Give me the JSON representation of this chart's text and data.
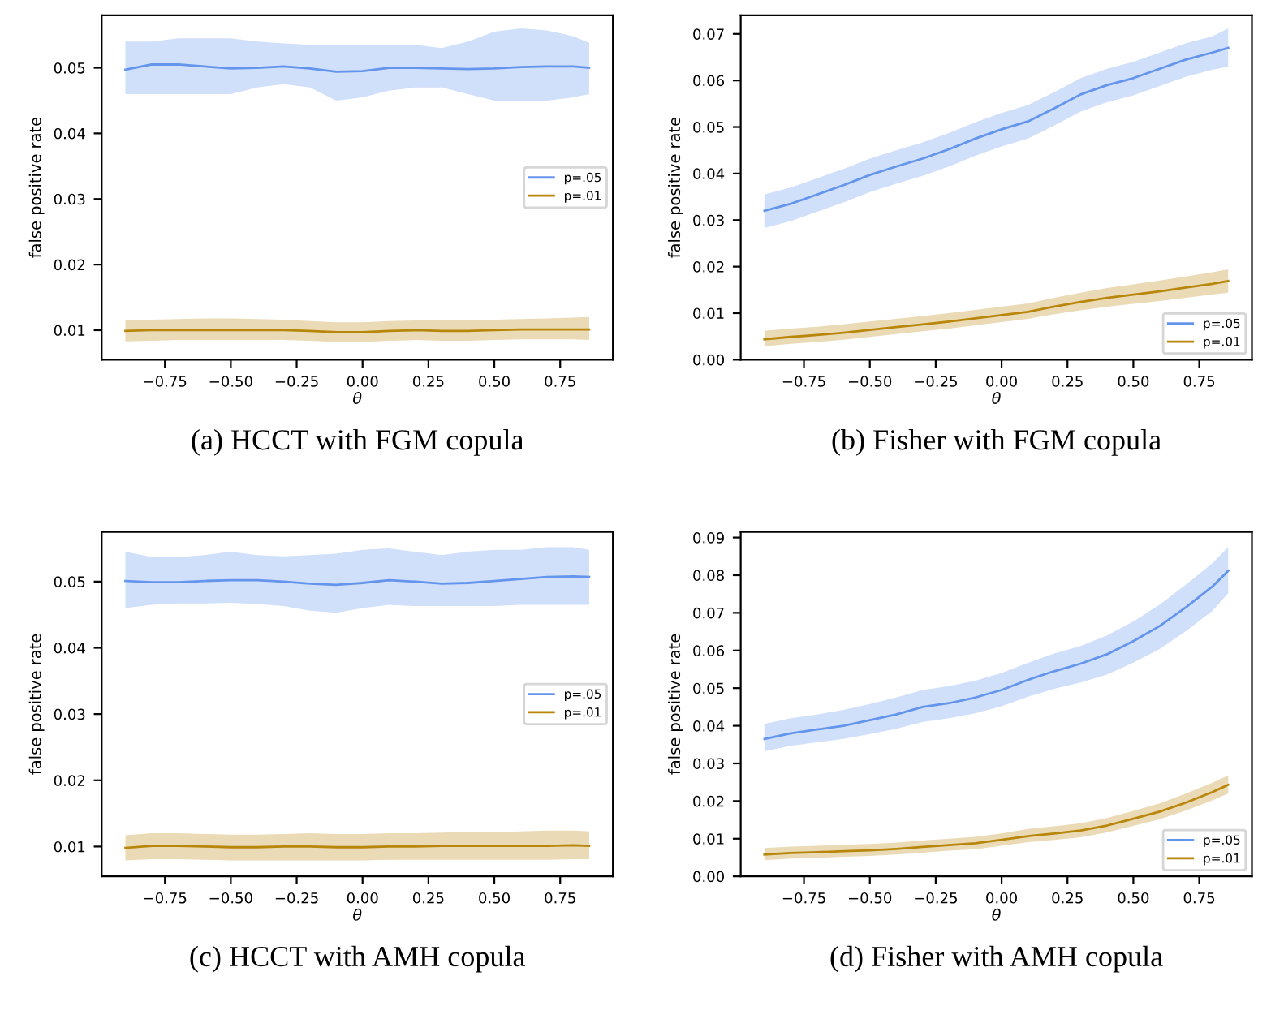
{
  "chart_data": [
    {
      "type": "line",
      "title": "(a) HCCT with FGM copula",
      "xlabel": "θ",
      "ylabel": "false positive rate",
      "legend": "center right",
      "x": [
        -0.9,
        -0.8,
        -0.7,
        -0.6,
        -0.5,
        -0.4,
        -0.3,
        -0.2,
        -0.1,
        0.0,
        0.1,
        0.2,
        0.3,
        0.4,
        0.5,
        0.6,
        0.7,
        0.8,
        0.86
      ],
      "xlim": [
        -0.99,
        0.95
      ],
      "ylim": [
        0.0055,
        0.058
      ],
      "xticks": [
        {
          "value": -0.75,
          "label": "−0.75"
        },
        {
          "value": -0.5,
          "label": "−0.50"
        },
        {
          "value": -0.25,
          "label": "−0.25"
        },
        {
          "value": 0,
          "label": "0.00"
        },
        {
          "value": 0.25,
          "label": "0.25"
        },
        {
          "value": 0.5,
          "label": "0.50"
        },
        {
          "value": 0.75,
          "label": "0.75"
        }
      ],
      "yticks": [
        0.01,
        0.02,
        0.03,
        0.04,
        0.05
      ],
      "series": [
        {
          "name": "p=.05",
          "color": "#6495ed",
          "values": [
            0.0497,
            0.0505,
            0.0505,
            0.0502,
            0.0499,
            0.05,
            0.0502,
            0.0499,
            0.0494,
            0.0495,
            0.05,
            0.05,
            0.0499,
            0.0498,
            0.0499,
            0.0501,
            0.0502,
            0.0502,
            0.05
          ],
          "lower": [
            0.046,
            0.046,
            0.046,
            0.046,
            0.046,
            0.047,
            0.0475,
            0.047,
            0.045,
            0.0455,
            0.0465,
            0.047,
            0.047,
            0.046,
            0.045,
            0.045,
            0.045,
            0.0455,
            0.046
          ],
          "upper": [
            0.054,
            0.054,
            0.0545,
            0.0545,
            0.0545,
            0.054,
            0.0537,
            0.0535,
            0.0535,
            0.0535,
            0.0535,
            0.0535,
            0.053,
            0.054,
            0.0555,
            0.056,
            0.0557,
            0.0548,
            0.0538
          ]
        },
        {
          "name": "p=.01",
          "color": "#b8860b",
          "values": [
            0.0099,
            0.01,
            0.01,
            0.01,
            0.01,
            0.01,
            0.01,
            0.0099,
            0.0097,
            0.0097,
            0.0099,
            0.01,
            0.0099,
            0.0099,
            0.01,
            0.0101,
            0.0101,
            0.0101,
            0.0101
          ],
          "lower": [
            0.0083,
            0.0084,
            0.0085,
            0.0085,
            0.0085,
            0.0085,
            0.0085,
            0.0084,
            0.0082,
            0.0082,
            0.0084,
            0.0085,
            0.0084,
            0.0084,
            0.0085,
            0.0086,
            0.0086,
            0.0086,
            0.0085
          ],
          "upper": [
            0.0115,
            0.0116,
            0.0117,
            0.0118,
            0.0118,
            0.0117,
            0.0116,
            0.0114,
            0.0112,
            0.0112,
            0.0114,
            0.0115,
            0.0115,
            0.0115,
            0.0116,
            0.0117,
            0.0118,
            0.0119,
            0.012
          ]
        }
      ]
    },
    {
      "type": "line",
      "title": "(b) Fisher with FGM copula",
      "xlabel": "θ",
      "ylabel": "false positive rate",
      "legend": "lower right",
      "x": [
        -0.9,
        -0.8,
        -0.7,
        -0.6,
        -0.5,
        -0.4,
        -0.3,
        -0.2,
        -0.1,
        0.0,
        0.1,
        0.2,
        0.3,
        0.4,
        0.5,
        0.6,
        0.7,
        0.8,
        0.86
      ],
      "xlim": [
        -0.99,
        0.95
      ],
      "ylim": [
        0,
        0.074
      ],
      "xticks": [
        {
          "value": -0.75,
          "label": "−0.75"
        },
        {
          "value": -0.5,
          "label": "−0.50"
        },
        {
          "value": -0.25,
          "label": "−0.25"
        },
        {
          "value": 0,
          "label": "0.00"
        },
        {
          "value": 0.25,
          "label": "0.25"
        },
        {
          "value": 0.5,
          "label": "0.50"
        },
        {
          "value": 0.75,
          "label": "0.75"
        }
      ],
      "yticks": [
        {
          "value": 0,
          "label": "0.00"
        },
        0.01,
        0.02,
        0.03,
        0.04,
        0.05,
        0.06,
        0.07
      ],
      "series": [
        {
          "name": "p=.05",
          "color": "#6495ed",
          "values": [
            0.032,
            0.0335,
            0.0355,
            0.0375,
            0.0397,
            0.0415,
            0.0432,
            0.0452,
            0.0475,
            0.0495,
            0.0512,
            0.054,
            0.057,
            0.059,
            0.0605,
            0.0625,
            0.0645,
            0.066,
            0.067
          ],
          "lower": [
            0.0283,
            0.0298,
            0.0318,
            0.0338,
            0.036,
            0.0378,
            0.0395,
            0.0415,
            0.0438,
            0.0458,
            0.0475,
            0.0503,
            0.0533,
            0.0553,
            0.0568,
            0.0588,
            0.0608,
            0.0623,
            0.063
          ],
          "upper": [
            0.0355,
            0.037,
            0.039,
            0.041,
            0.0432,
            0.045,
            0.0467,
            0.0487,
            0.051,
            0.053,
            0.0547,
            0.0575,
            0.0605,
            0.0625,
            0.064,
            0.066,
            0.068,
            0.0695,
            0.0712
          ]
        },
        {
          "name": "p=.01",
          "color": "#b8860b",
          "values": [
            0.0044,
            0.0049,
            0.0053,
            0.0058,
            0.0064,
            0.007,
            0.0076,
            0.0082,
            0.0089,
            0.0096,
            0.0103,
            0.0114,
            0.0124,
            0.0133,
            0.014,
            0.0147,
            0.0155,
            0.0163,
            0.0169
          ],
          "lower": [
            0.0029,
            0.0034,
            0.0038,
            0.0043,
            0.0049,
            0.0055,
            0.0061,
            0.0067,
            0.0074,
            0.0081,
            0.0088,
            0.0098,
            0.0106,
            0.0114,
            0.012,
            0.0126,
            0.0133,
            0.014,
            0.0144
          ],
          "upper": [
            0.0062,
            0.0067,
            0.0071,
            0.0076,
            0.0082,
            0.0088,
            0.0094,
            0.01,
            0.0107,
            0.0114,
            0.0121,
            0.0133,
            0.0144,
            0.0154,
            0.0162,
            0.017,
            0.0179,
            0.0188,
            0.0194
          ]
        }
      ]
    },
    {
      "type": "line",
      "title": "(c) HCCT with AMH copula",
      "xlabel": "θ",
      "ylabel": "false positive rate",
      "legend": "center right",
      "x": [
        -0.9,
        -0.8,
        -0.7,
        -0.6,
        -0.5,
        -0.4,
        -0.3,
        -0.2,
        -0.1,
        0.0,
        0.1,
        0.2,
        0.3,
        0.4,
        0.5,
        0.6,
        0.7,
        0.8,
        0.86
      ],
      "xlim": [
        -0.99,
        0.95
      ],
      "ylim": [
        0.0055,
        0.0575
      ],
      "xticks": [
        {
          "value": -0.75,
          "label": "−0.75"
        },
        {
          "value": -0.5,
          "label": "−0.50"
        },
        {
          "value": -0.25,
          "label": "−0.25"
        },
        {
          "value": 0,
          "label": "0.00"
        },
        {
          "value": 0.25,
          "label": "0.25"
        },
        {
          "value": 0.5,
          "label": "0.50"
        },
        {
          "value": 0.75,
          "label": "0.75"
        }
      ],
      "yticks": [
        0.01,
        0.02,
        0.03,
        0.04,
        0.05
      ],
      "series": [
        {
          "name": "p=.05",
          "color": "#6495ed",
          "values": [
            0.0501,
            0.0499,
            0.0499,
            0.0501,
            0.0502,
            0.0502,
            0.05,
            0.0497,
            0.0495,
            0.0498,
            0.0502,
            0.05,
            0.0497,
            0.0498,
            0.0501,
            0.0504,
            0.0507,
            0.0508,
            0.0507
          ],
          "lower": [
            0.046,
            0.0465,
            0.0467,
            0.0467,
            0.0468,
            0.0466,
            0.0463,
            0.0456,
            0.0453,
            0.046,
            0.0465,
            0.0463,
            0.0463,
            0.0463,
            0.0463,
            0.0465,
            0.0465,
            0.0465,
            0.0465
          ],
          "upper": [
            0.0545,
            0.0537,
            0.0537,
            0.054,
            0.0545,
            0.054,
            0.0538,
            0.054,
            0.0542,
            0.0548,
            0.055,
            0.0545,
            0.054,
            0.0545,
            0.0548,
            0.0548,
            0.0552,
            0.0552,
            0.0548
          ]
        },
        {
          "name": "p=.01",
          "color": "#b8860b",
          "values": [
            0.0098,
            0.0101,
            0.0101,
            0.01,
            0.0099,
            0.0099,
            0.01,
            0.01,
            0.0099,
            0.0099,
            0.01,
            0.01,
            0.0101,
            0.0101,
            0.0101,
            0.0101,
            0.0101,
            0.0102,
            0.0101
          ],
          "lower": [
            0.0079,
            0.0081,
            0.0081,
            0.008,
            0.0079,
            0.0079,
            0.0079,
            0.0079,
            0.0079,
            0.0079,
            0.008,
            0.008,
            0.008,
            0.008,
            0.008,
            0.008,
            0.008,
            0.0081,
            0.0081
          ],
          "upper": [
            0.0117,
            0.012,
            0.012,
            0.0119,
            0.0118,
            0.0118,
            0.0119,
            0.012,
            0.0119,
            0.0119,
            0.012,
            0.012,
            0.0121,
            0.0122,
            0.0122,
            0.0123,
            0.0124,
            0.0124,
            0.0123
          ]
        }
      ]
    },
    {
      "type": "line",
      "title": "(d) Fisher with AMH copula",
      "xlabel": "θ",
      "ylabel": "false positive rate",
      "legend": "lower right",
      "x": [
        -0.9,
        -0.8,
        -0.7,
        -0.6,
        -0.5,
        -0.4,
        -0.3,
        -0.2,
        -0.1,
        0.0,
        0.1,
        0.2,
        0.3,
        0.4,
        0.5,
        0.6,
        0.7,
        0.8,
        0.86
      ],
      "xlim": [
        -0.99,
        0.95
      ],
      "ylim": [
        0,
        0.0915
      ],
      "xticks": [
        {
          "value": -0.75,
          "label": "−0.75"
        },
        {
          "value": -0.5,
          "label": "−0.50"
        },
        {
          "value": -0.25,
          "label": "−0.25"
        },
        {
          "value": 0,
          "label": "0.00"
        },
        {
          "value": 0.25,
          "label": "0.25"
        },
        {
          "value": 0.5,
          "label": "0.50"
        },
        {
          "value": 0.75,
          "label": "0.75"
        }
      ],
      "yticks": [
        {
          "value": 0,
          "label": "0.00"
        },
        0.01,
        0.02,
        0.03,
        0.04,
        0.05,
        0.06,
        0.07,
        0.08,
        0.09
      ],
      "series": [
        {
          "name": "p=.05",
          "color": "#6495ed",
          "values": [
            0.0365,
            0.038,
            0.039,
            0.04,
            0.0415,
            0.043,
            0.045,
            0.046,
            0.0475,
            0.0495,
            0.0522,
            0.0545,
            0.0565,
            0.059,
            0.0625,
            0.0665,
            0.0715,
            0.077,
            0.0812
          ],
          "lower": [
            0.0332,
            0.0347,
            0.0356,
            0.0365,
            0.0378,
            0.0392,
            0.041,
            0.042,
            0.0433,
            0.0452,
            0.0477,
            0.0498,
            0.0515,
            0.0536,
            0.0568,
            0.0604,
            0.0652,
            0.0705,
            0.0752
          ],
          "upper": [
            0.0405,
            0.042,
            0.043,
            0.0442,
            0.0458,
            0.0475,
            0.0495,
            0.0505,
            0.052,
            0.054,
            0.0567,
            0.0592,
            0.0612,
            0.064,
            0.0677,
            0.0722,
            0.0775,
            0.0832,
            0.0875
          ]
        },
        {
          "name": "p=.01",
          "color": "#b8860b",
          "values": [
            0.0058,
            0.0062,
            0.0064,
            0.0067,
            0.0069,
            0.0073,
            0.0078,
            0.0083,
            0.0088,
            0.0097,
            0.0107,
            0.0114,
            0.0122,
            0.0135,
            0.0153,
            0.0172,
            0.0196,
            0.0224,
            0.0243
          ],
          "lower": [
            0.0043,
            0.0047,
            0.0049,
            0.0052,
            0.0054,
            0.0058,
            0.0063,
            0.0068,
            0.0072,
            0.0081,
            0.0091,
            0.0097,
            0.0104,
            0.0117,
            0.0134,
            0.0152,
            0.0175,
            0.0202,
            0.022
          ],
          "upper": [
            0.0075,
            0.0079,
            0.0081,
            0.0084,
            0.0086,
            0.009,
            0.0095,
            0.01,
            0.0105,
            0.0114,
            0.0126,
            0.0133,
            0.0141,
            0.0155,
            0.0174,
            0.0194,
            0.022,
            0.0249,
            0.0268
          ]
        }
      ]
    }
  ]
}
